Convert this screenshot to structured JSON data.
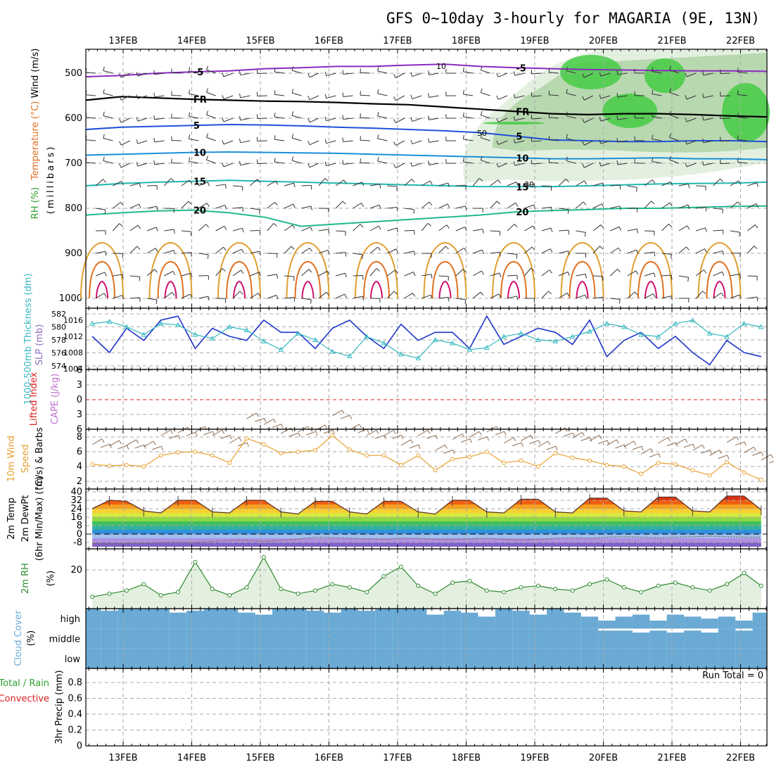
{
  "title": "GFS 0~10day 3-hourly for MAGARIA (9E, 13N)",
  "dates": [
    "13FEB",
    "14FEB",
    "15FEB",
    "16FEB",
    "17FEB",
    "18FEB",
    "19FEB",
    "20FEB",
    "21FEB",
    "22FEB"
  ],
  "panel_labels": {
    "upper": {
      "rh": "RH (%)",
      "temp": "Temperature (°C)",
      "wind": "Wind (m/s)",
      "pressure": "(millibars)"
    },
    "slp": {
      "thick": "1000-500mb Thickness (dm)",
      "slp": "SLP (mb)"
    },
    "li": {
      "li": "Lifted Index",
      "cape": "CAPE (J/kg)"
    },
    "wind10": {
      "title": "10m Wind",
      "speed": "Speed",
      "barbs": "(m/s) & Barbs"
    },
    "t2m": {
      "temp": "2m Temp",
      "dew": "2m DewPt",
      "minmax": "(6hr Min/Max) (°C)"
    },
    "rh2m": {
      "title": "2m RH",
      "unit": "(%)"
    },
    "cloud": {
      "title": "Cloud Cover",
      "unit": "(%)",
      "levels": [
        "high",
        "middle",
        "low"
      ]
    },
    "precip": {
      "total": "Total / Rain",
      "conv": "Convective",
      "unit": "3hr Precip (mm)"
    }
  },
  "precip_run_total": "Run Total = 0",
  "colors": {
    "slp": "#1f35c8",
    "thickness": "#35b8c0",
    "wind_speed": "#e8a030",
    "barb": "#8b6a50",
    "rh": "#2f8a2f",
    "cloud": "#6aaad4",
    "li_zero": "#dd2222",
    "rh_fill_light": "#e3f0e0",
    "rh_fill_mid": "#b8d8b0",
    "rh_fill_dark": "#44cc44",
    "temp_purple": "#8a2bc0",
    "temp_fr": "#000000",
    "temp_blue": "#2050d8",
    "temp_lightblue": "#1a90d8",
    "temp_cyan": "#20b8b0",
    "temp_green": "#20b890",
    "temp_orange": "#e0a030",
    "temp_red": "#e07020",
    "temp_magenta": "#d01070"
  },
  "chart_data": [
    {
      "type": "line",
      "name": "upper-air cross section",
      "y_axis_pressure_mb": [
        500,
        600,
        700,
        800,
        900,
        1000
      ],
      "contour_labels": [
        "-5",
        "FR",
        "5",
        "10",
        "15",
        "20"
      ],
      "rh_labels": [
        "10",
        "30",
        "50"
      ],
      "contour_levels_pressure": [
        {
          "label": "-5",
          "pressure": [
            508,
            505,
            500,
            497,
            495,
            490,
            488,
            485,
            485,
            482,
            480,
            485,
            488,
            490,
            492,
            493,
            494,
            495,
            495,
            496
          ]
        },
        {
          "label": "FR",
          "pressure": [
            560,
            552,
            555,
            558,
            560,
            562,
            563,
            565,
            568,
            570,
            575,
            580,
            585,
            590,
            592,
            590,
            590,
            592,
            595,
            597
          ]
        },
        {
          "label": "5",
          "pressure": [
            625,
            620,
            618,
            616,
            614,
            615,
            617,
            620,
            622,
            625,
            628,
            632,
            640,
            648,
            650,
            652,
            652,
            650,
            650,
            652
          ]
        },
        {
          "label": "10",
          "pressure": [
            682,
            680,
            678,
            676,
            675,
            676,
            677,
            678,
            680,
            682,
            684,
            686,
            688,
            690,
            690,
            689,
            688,
            690,
            690,
            692
          ]
        },
        {
          "label": "15",
          "pressure": [
            750,
            745,
            742,
            740,
            738,
            740,
            742,
            744,
            746,
            748,
            750,
            752,
            752,
            752,
            750,
            748,
            746,
            745,
            744,
            742
          ]
        },
        {
          "label": "20",
          "pressure": [
            815,
            810,
            806,
            804,
            810,
            820,
            840,
            835,
            830,
            825,
            820,
            815,
            808,
            805,
            803,
            800,
            800,
            798,
            796,
            795
          ]
        }
      ]
    },
    {
      "type": "line",
      "name": "SLP and thickness",
      "y_left_dm": [
        574,
        576,
        578,
        580,
        582
      ],
      "y_right_mb": [
        1004,
        1008,
        1012,
        1016
      ],
      "x": [
        0,
        0.25,
        0.5,
        0.75,
        1,
        1.25,
        1.5,
        1.75,
        2,
        2.25,
        2.5,
        2.75,
        3,
        3.25,
        3.5,
        3.75,
        4,
        4.25,
        4.5,
        4.75,
        5,
        5.25,
        5.5,
        5.75,
        6,
        6.25,
        6.5,
        6.75,
        7,
        7.25,
        7.5,
        7.75,
        8,
        8.25,
        8.5,
        8.75,
        9,
        9.25,
        9.5,
        9.75
      ],
      "slp_mb": [
        1012,
        1008,
        1014,
        1011,
        1016,
        1017,
        1009,
        1014,
        1012,
        1011,
        1016,
        1013,
        1013,
        1009,
        1014,
        1016,
        1012,
        1009,
        1015,
        1011,
        1013,
        1013,
        1009,
        1017,
        1010,
        1012,
        1014,
        1013,
        1010,
        1016,
        1007,
        1011,
        1013,
        1009,
        1012,
        1008,
        1005,
        1011,
        1008,
        1007
      ],
      "thickness_dm": [
        580.5,
        580.8,
        580,
        578.8,
        580.5,
        580.3,
        578.8,
        578.2,
        580,
        579.5,
        577.8,
        576.5,
        579,
        578,
        576.2,
        575.5,
        578.5,
        577.5,
        575.8,
        575.2,
        578,
        577.5,
        576.5,
        576.8,
        578.5,
        579,
        578,
        577.8,
        578.5,
        579.3,
        580.5,
        580,
        578.8,
        578.5,
        580.5,
        581,
        579,
        578.5,
        580.5,
        580
      ]
    },
    {
      "type": "line",
      "name": "Lifted Index",
      "y_range": [
        6,
        -6
      ],
      "y_ticks": [
        6,
        3,
        0,
        -3,
        -6
      ],
      "values": []
    },
    {
      "type": "line",
      "name": "10m wind speed",
      "y_range": [
        1,
        9
      ],
      "y_ticks": [
        2,
        4,
        6,
        8
      ],
      "x": [
        0,
        0.25,
        0.5,
        0.75,
        1,
        1.25,
        1.5,
        1.75,
        2,
        2.25,
        2.5,
        2.75,
        3,
        3.25,
        3.5,
        3.75,
        4,
        4.25,
        4.5,
        4.75,
        5,
        5.25,
        5.5,
        5.75,
        6,
        6.25,
        6.5,
        6.75,
        7,
        7.25,
        7.5,
        7.75,
        8,
        8.25,
        8.5,
        8.75,
        9,
        9.25,
        9.5,
        9.75
      ],
      "speed_ms": [
        4.3,
        4.1,
        4.2,
        4.0,
        5.5,
        5.9,
        6.0,
        5.5,
        4.5,
        7.8,
        7.0,
        5.8,
        6.0,
        6.2,
        8.2,
        6.3,
        5.5,
        5.5,
        4.2,
        5.5,
        3.5,
        5.0,
        5.3,
        6.0,
        4.5,
        4.8,
        4.0,
        5.8,
        5.2,
        4.8,
        4.2,
        4.0,
        3.0,
        4.5,
        4.3,
        3.5,
        2.8,
        4.6,
        3.2,
        2.2
      ]
    },
    {
      "type": "area",
      "name": "2m temperature and dewpoint",
      "y_range": [
        -12,
        40
      ],
      "y_ticks": [
        40,
        32,
        24,
        16,
        8,
        0,
        -8
      ],
      "x": [
        0,
        0.25,
        0.5,
        0.75,
        1,
        1.25,
        1.5,
        1.75,
        2,
        2.25,
        2.5,
        2.75,
        3,
        3.25,
        3.5,
        3.75,
        4,
        4.25,
        4.5,
        4.75,
        5,
        5.25,
        5.5,
        5.75,
        6,
        6.25,
        6.5,
        6.75,
        7,
        7.25,
        7.5,
        7.75,
        8,
        8.25,
        8.5,
        8.75,
        9,
        9.25,
        9.5,
        9.75
      ],
      "temp_c": [
        24,
        32,
        31,
        22,
        20,
        32,
        32,
        21,
        20,
        32,
        32,
        21,
        19,
        31,
        31,
        21,
        19,
        31,
        31,
        21,
        19,
        32,
        32,
        21,
        20,
        33,
        33,
        21,
        20,
        34,
        34,
        22,
        21,
        35,
        35,
        22,
        21,
        36,
        36,
        23
      ],
      "dewpoint_c": [
        -9,
        -9.5,
        -9,
        -8.5,
        -8,
        -7.5,
        -8,
        -7,
        -6,
        -6,
        -7,
        -6,
        -5,
        -3,
        -3.5,
        -4,
        -4.5,
        -5,
        -4,
        -4,
        -5,
        -5,
        -4.5,
        -4,
        -5,
        -5.5,
        -5,
        -4,
        -3.5,
        -4,
        -3,
        -2.5,
        -3,
        -3.5,
        -3,
        -2.5,
        -2,
        -2.5,
        -3,
        -3
      ]
    },
    {
      "type": "area",
      "name": "2m RH",
      "y_range": [
        0,
        35
      ],
      "y_ticks": [
        20
      ],
      "x": [
        0,
        0.25,
        0.5,
        0.75,
        1,
        1.25,
        1.5,
        1.75,
        2,
        2.25,
        2.5,
        2.75,
        3,
        3.25,
        3.5,
        3.75,
        4,
        4.25,
        4.5,
        4.75,
        5,
        5.25,
        5.5,
        5.75,
        6,
        6.25,
        6.5,
        6.75,
        7,
        7.25,
        7.5,
        7.75,
        8,
        8.25,
        8.5,
        8.75,
        9,
        9.25,
        9.5,
        9.75
      ],
      "rh_pct": [
        3,
        5,
        7,
        11,
        4,
        6,
        25,
        8,
        4,
        9,
        28,
        8,
        5,
        7,
        11,
        9,
        6,
        16,
        22,
        10,
        5,
        12,
        13,
        7,
        6,
        9,
        10,
        8,
        7,
        11,
        14,
        9,
        6,
        10,
        12,
        9,
        7,
        11,
        18,
        10
      ]
    },
    {
      "type": "heatmap",
      "name": "Cloud Cover",
      "rows": [
        "high",
        "middle",
        "low"
      ],
      "high_cover_pct": [
        100,
        90,
        100,
        100,
        100,
        80,
        90,
        100,
        100,
        80,
        70,
        100,
        100,
        90,
        80,
        100,
        90,
        100,
        100,
        100,
        70,
        90,
        80,
        60,
        100,
        90,
        70,
        100,
        80,
        60,
        40,
        60,
        70,
        40,
        70,
        60,
        50,
        60,
        40,
        80
      ],
      "middle_cover_pct": [
        100,
        100,
        100,
        100,
        100,
        100,
        100,
        100,
        100,
        100,
        100,
        100,
        100,
        100,
        100,
        100,
        100,
        100,
        100,
        100,
        100,
        100,
        100,
        100,
        100,
        100,
        100,
        100,
        100,
        100,
        90,
        90,
        80,
        90,
        80,
        90,
        80,
        100,
        90,
        100
      ],
      "low_cover_pct": [
        100,
        100,
        100,
        100,
        100,
        100,
        100,
        100,
        100,
        100,
        100,
        100,
        100,
        100,
        100,
        100,
        100,
        100,
        100,
        100,
        100,
        100,
        100,
        100,
        100,
        100,
        100,
        100,
        100,
        100,
        100,
        100,
        100,
        100,
        100,
        100,
        100,
        100,
        100,
        100
      ]
    },
    {
      "type": "bar",
      "name": "3hr Precip",
      "y_range": [
        0,
        1
      ],
      "y_ticks": [
        0,
        0.2,
        0.4,
        0.6,
        0.8
      ],
      "values": []
    }
  ]
}
